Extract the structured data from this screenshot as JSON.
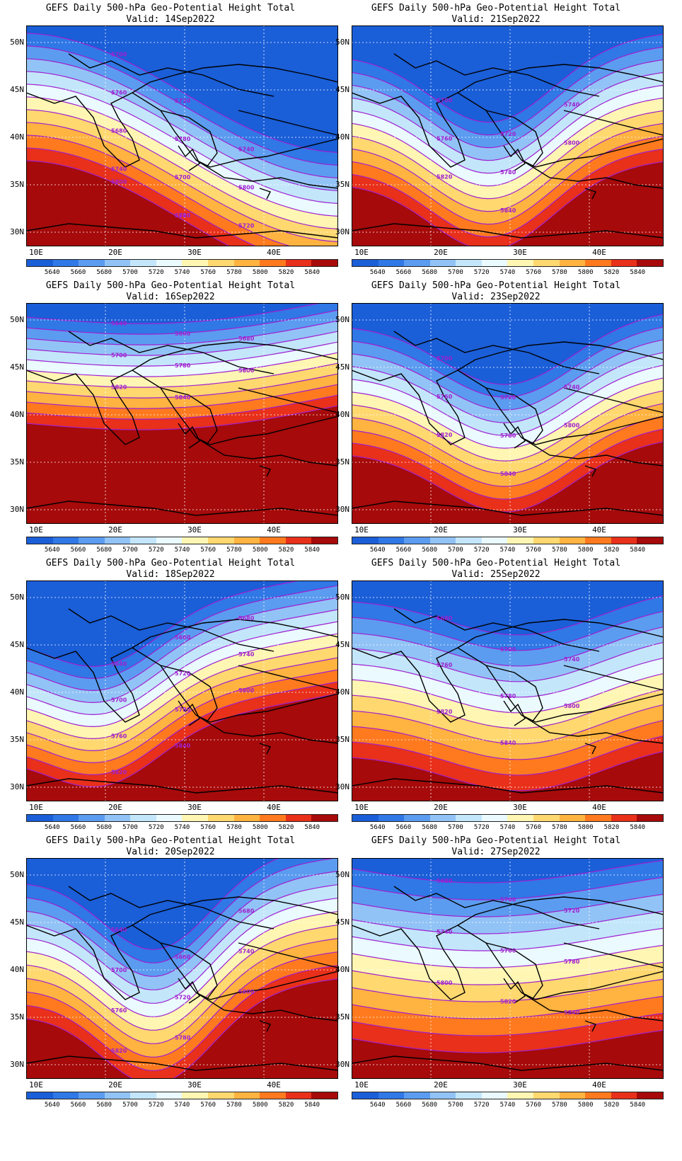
{
  "title_line1": "GEFS Daily 500-hPa Geo-Potential Height Total",
  "lat_labels": [
    "50N",
    "45N",
    "40N",
    "35N",
    "30N"
  ],
  "lon_labels": [
    "10E",
    "20E",
    "30E",
    "40E"
  ],
  "colorbar": {
    "labels": [
      "5640",
      "5660",
      "5680",
      "5700",
      "5720",
      "5740",
      "5760",
      "5780",
      "5800",
      "5820",
      "5840"
    ],
    "colors": [
      "#1a5ed8",
      "#2f78e6",
      "#5b9cf0",
      "#92c3f6",
      "#c3e6fb",
      "#eafaff",
      "#fff6b3",
      "#ffd870",
      "#ffb340",
      "#ff7a1e",
      "#e8301a",
      "#a60a0a"
    ]
  },
  "panels": [
    {
      "valid": "Valid: 14Sep2022",
      "contour_labels": [
        "5700",
        "5720",
        "5740",
        "5760",
        "5780",
        "5800",
        "5680",
        "5700",
        "5720",
        "5740",
        "5760",
        "5780",
        "5800",
        "5820",
        "5840"
      ],
      "shape": "ridge_w"
    },
    {
      "valid": "Valid: 21Sep2022",
      "contour_labels": [
        "5700",
        "5720",
        "5740",
        "5760",
        "5780",
        "5800",
        "5820",
        "5840"
      ],
      "shape": "trough_c"
    },
    {
      "valid": "Valid: 16Sep2022",
      "contour_labels": [
        "5640",
        "5660",
        "5680",
        "5700",
        "5780",
        "5800",
        "5820",
        "5840"
      ],
      "shape": "zonal"
    },
    {
      "valid": "Valid: 23Sep2022",
      "contour_labels": [
        "5700",
        "5720",
        "5740",
        "5760",
        "5780",
        "5800",
        "5820",
        "5840"
      ],
      "shape": "trough_e"
    },
    {
      "valid": "Valid: 18Sep2022",
      "contour_labels": [
        "5640",
        "5660",
        "5680",
        "5700",
        "5720",
        "5740",
        "5760",
        "5780",
        "5800",
        "5820",
        "5840"
      ],
      "shape": "trough_w"
    },
    {
      "valid": "Valid: 25Sep2022",
      "contour_labels": [
        "5680",
        "5700",
        "5740",
        "5760",
        "5780",
        "5800",
        "5820",
        "5840"
      ],
      "shape": "weak_trough"
    },
    {
      "valid": "Valid: 20Sep2022",
      "contour_labels": [
        "5640",
        "5660",
        "5680",
        "5700",
        "5720",
        "5740",
        "5760",
        "5780",
        "5800",
        "5820",
        "5840"
      ],
      "shape": "trough_c2"
    },
    {
      "valid": "Valid: 27Sep2022",
      "contour_labels": [
        "5680",
        "5700",
        "5720",
        "5740",
        "5760",
        "5780",
        "5800",
        "5820",
        "5840"
      ],
      "shape": "flat"
    }
  ]
}
